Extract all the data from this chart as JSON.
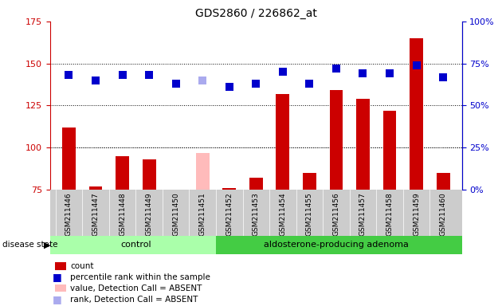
{
  "title": "GDS2860 / 226862_at",
  "samples": [
    "GSM211446",
    "GSM211447",
    "GSM211448",
    "GSM211449",
    "GSM211450",
    "GSM211451",
    "GSM211452",
    "GSM211453",
    "GSM211454",
    "GSM211455",
    "GSM211456",
    "GSM211457",
    "GSM211458",
    "GSM211459",
    "GSM211460"
  ],
  "bar_values": [
    112,
    77,
    95,
    93,
    75,
    97,
    76,
    82,
    132,
    85,
    134,
    129,
    122,
    165,
    85
  ],
  "bar_colors": [
    "#cc0000",
    "#cc0000",
    "#cc0000",
    "#cc0000",
    "#cc0000",
    "#ffbbbb",
    "#cc0000",
    "#cc0000",
    "#cc0000",
    "#cc0000",
    "#cc0000",
    "#cc0000",
    "#cc0000",
    "#cc0000",
    "#cc0000"
  ],
  "rank_pct": [
    68,
    65,
    68,
    68,
    63,
    65,
    61,
    63,
    70,
    63,
    72,
    69,
    69,
    74,
    67
  ],
  "rank_colors": [
    "#0000cc",
    "#0000cc",
    "#0000cc",
    "#0000cc",
    "#0000cc",
    "#aaaaee",
    "#0000cc",
    "#0000cc",
    "#0000cc",
    "#0000cc",
    "#0000cc",
    "#0000cc",
    "#0000cc",
    "#0000cc",
    "#0000cc"
  ],
  "ylim_left": [
    75,
    175
  ],
  "ylim_right": [
    0,
    100
  ],
  "yticks_left": [
    75,
    100,
    125,
    150,
    175
  ],
  "yticks_right": [
    0,
    25,
    50,
    75,
    100
  ],
  "grid_values": [
    100,
    125,
    150
  ],
  "n_control": 6,
  "n_adenoma": 9,
  "control_label": "control",
  "adenoma_label": "aldosterone-producing adenoma",
  "disease_state_label": "disease state",
  "legend_items": [
    {
      "label": "count",
      "color": "#cc0000",
      "type": "rect"
    },
    {
      "label": "percentile rank within the sample",
      "color": "#0000cc",
      "type": "square"
    },
    {
      "label": "value, Detection Call = ABSENT",
      "color": "#ffbbbb",
      "type": "rect"
    },
    {
      "label": "rank, Detection Call = ABSENT",
      "color": "#aaaaee",
      "type": "square"
    }
  ],
  "left_axis_color": "#cc0000",
  "right_axis_color": "#0000cc",
  "sample_bg": "#cccccc",
  "control_color": "#aaffaa",
  "adenoma_color": "#44cc44"
}
